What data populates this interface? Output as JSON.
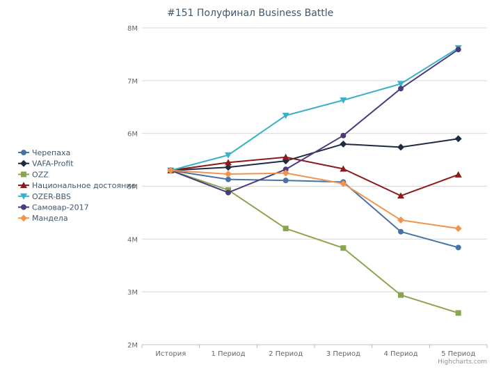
{
  "chart_data": {
    "type": "line",
    "title": "#151 Полуфинал Business Battle",
    "categories": [
      "История",
      "1 Период",
      "2 Период",
      "3 Период",
      "4 Период",
      "5 Период"
    ],
    "y_ticks": [
      "2M",
      "3M",
      "4M",
      "5M",
      "6M",
      "7M",
      "8M"
    ],
    "ylim": [
      2,
      8
    ],
    "y_unit": "M",
    "grid": true,
    "legend_position": "left",
    "credits": "Highcharts.com",
    "series": [
      {
        "name": "Черепаха",
        "color": "#4572a7",
        "marker": "circle",
        "values": [
          5.3,
          5.13,
          5.11,
          5.08,
          4.14,
          3.84
        ]
      },
      {
        "name": "VAFA-Profit",
        "color": "#1f2a44",
        "marker": "diamond",
        "values": [
          5.3,
          5.36,
          5.48,
          5.8,
          5.74,
          5.9
        ]
      },
      {
        "name": "OZZ",
        "color": "#89a54e",
        "marker": "square",
        "values": [
          5.3,
          4.93,
          4.2,
          3.83,
          2.94,
          2.6
        ]
      },
      {
        "name": "Национальное достояние",
        "color": "#8b1a1a",
        "marker": "triangle",
        "values": [
          5.3,
          5.45,
          5.55,
          5.33,
          4.82,
          5.22
        ]
      },
      {
        "name": "OZER-BBS",
        "color": "#3bb1c8",
        "marker": "triangle-down",
        "values": [
          5.3,
          5.59,
          6.34,
          6.63,
          6.94,
          7.62
        ]
      },
      {
        "name": "Самовар-2017",
        "color": "#4b3b7d",
        "marker": "circle",
        "values": [
          5.3,
          4.88,
          5.32,
          5.96,
          6.85,
          7.59
        ]
      },
      {
        "name": "Мандела",
        "color": "#f0944d",
        "marker": "diamond",
        "values": [
          5.3,
          5.23,
          5.25,
          5.05,
          4.36,
          4.2
        ]
      }
    ]
  }
}
